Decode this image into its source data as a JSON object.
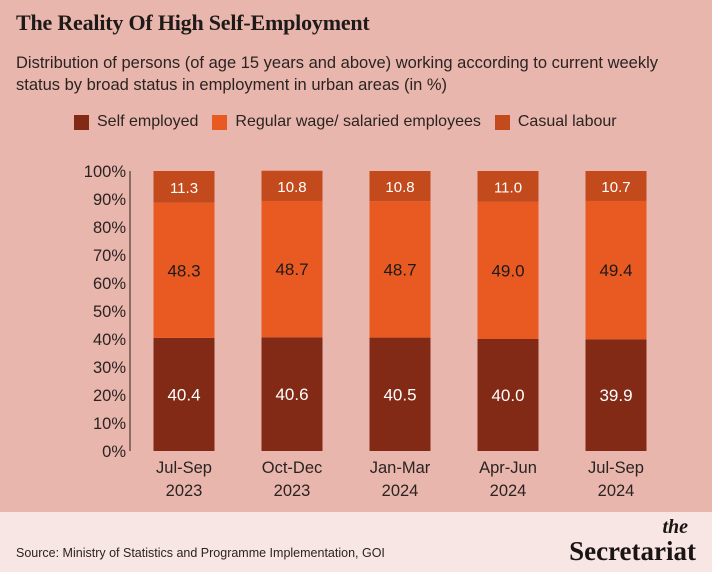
{
  "title": "The Reality Of High Self-Employment",
  "subtitle": "Distribution of persons (of age 15 years and above) working according to current weekly status by broad status in employment in urban areas (in %)",
  "source": "Source: Ministry of Statistics and Programme Implementation, GOI",
  "brand": {
    "the": "the",
    "name": "Secretariat"
  },
  "chart_data": {
    "type": "bar",
    "stacked": true,
    "categories": [
      [
        "Jul-Sep",
        "2023"
      ],
      [
        "Oct-Dec",
        "2023"
      ],
      [
        "Jan-Mar",
        "2024"
      ],
      [
        "Apr-Jun",
        "2024"
      ],
      [
        "Jul-Sep",
        "2024"
      ]
    ],
    "series": [
      {
        "name": "Self employed",
        "color": "#832a16",
        "values": [
          40.4,
          40.6,
          40.5,
          40.0,
          39.9
        ],
        "labels": [
          "40.4",
          "40.6",
          "40.5",
          "40.0",
          "39.9"
        ]
      },
      {
        "name": "Regular wage/ salaried employees",
        "color": "#e85a22",
        "values": [
          48.3,
          48.7,
          48.7,
          49.0,
          49.4
        ],
        "labels": [
          "48.3",
          "48.7",
          "48.7",
          "49.0",
          "49.4"
        ]
      },
      {
        "name": "Casual labour",
        "color": "#c24a1c",
        "values": [
          11.3,
          10.8,
          10.8,
          11.0,
          10.7
        ],
        "labels": [
          "11.3",
          "10.8",
          "10.8",
          "11.0",
          "10.7"
        ]
      }
    ],
    "yticks": [
      "0%",
      "10%",
      "20%",
      "30%",
      "40%",
      "50%",
      "60%",
      "70%",
      "80%",
      "90%",
      "100%"
    ],
    "ylim": [
      0,
      100
    ],
    "xlabel": "",
    "ylabel": "",
    "legend_position": "top",
    "grid": false
  }
}
